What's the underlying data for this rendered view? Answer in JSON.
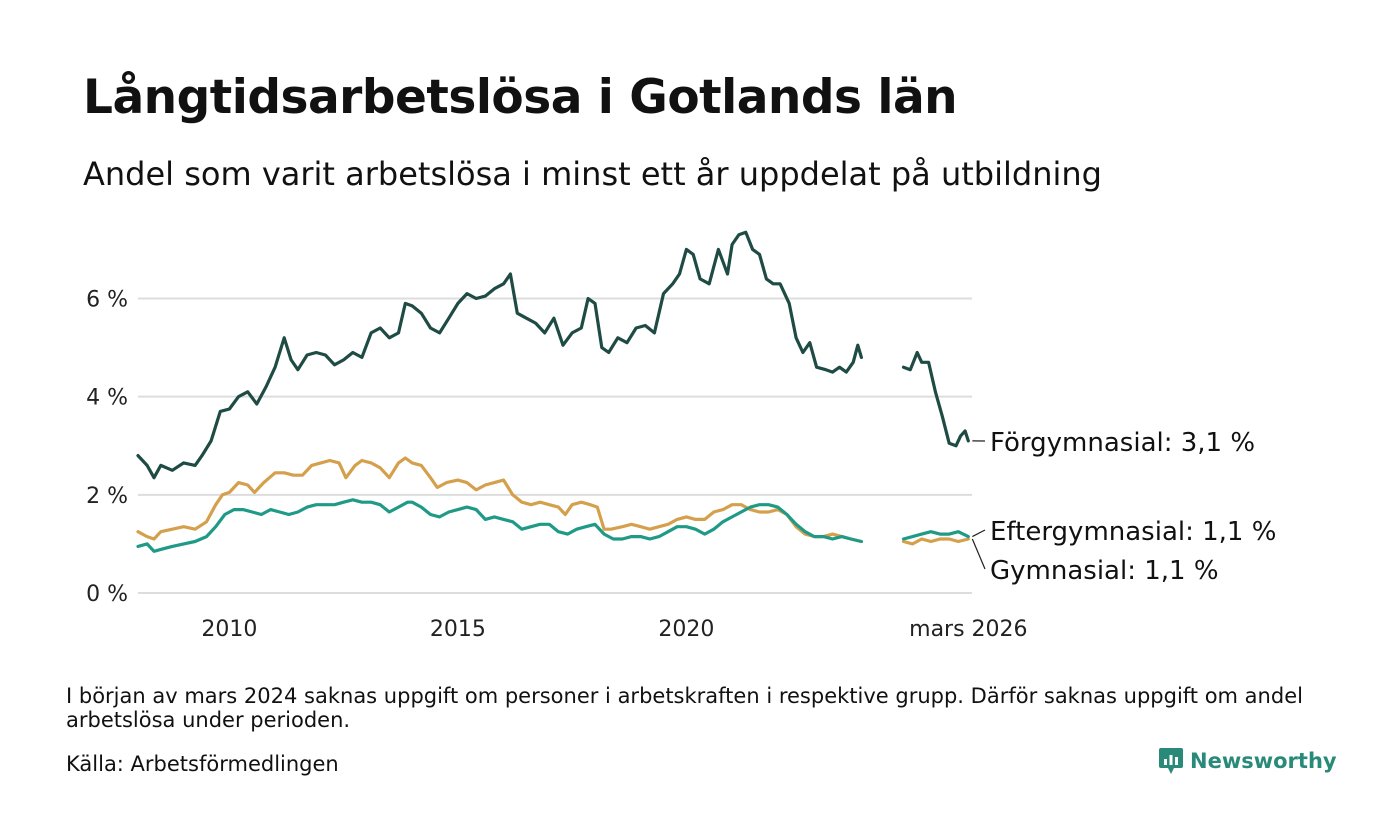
{
  "title": "Långtidsarbetslösa i Gotlands län",
  "subtitle": "Andel som varit arbetslösa i minst ett år uppdelat på utbildning",
  "note": "I början av mars 2024 saknas uppgift om personer i arbetskraften i respektive grupp. Därför saknas uppgift om andel arbetslösa under perioden.",
  "source": "Källa: Arbetsförmedlingen",
  "brand": "Newsworthy",
  "colors": {
    "forgymnasial": "#1f4b45",
    "gymnasial": "#d4a04c",
    "eftergymnasial": "#1f9a86",
    "grid": "#dddddd",
    "brand": "#2a8a7a"
  },
  "chart_data": {
    "type": "line",
    "x_unit": "decimal year",
    "xlim": [
      2008.0,
      2026.25
    ],
    "ylim": [
      0,
      7.6
    ],
    "y_ticks": [
      0,
      2,
      4,
      6
    ],
    "y_tick_labels": [
      "0 %",
      "2 %",
      "4 %",
      "6 %"
    ],
    "x_ticks": [
      2010,
      2015,
      2020,
      2026.17
    ],
    "x_tick_labels": [
      "2010",
      "2015",
      "2020",
      "mars 2026"
    ],
    "gap": [
      2023.83,
      2024.75
    ],
    "series": [
      {
        "name": "Förgymnasial",
        "label": "Förgymnasial: 3,1 %",
        "color": "#1f4b45",
        "points": [
          [
            2008.0,
            2.8
          ],
          [
            2008.2,
            2.6
          ],
          [
            2008.35,
            2.35
          ],
          [
            2008.5,
            2.6
          ],
          [
            2008.75,
            2.5
          ],
          [
            2009.0,
            2.65
          ],
          [
            2009.25,
            2.6
          ],
          [
            2009.4,
            2.8
          ],
          [
            2009.6,
            3.1
          ],
          [
            2009.8,
            3.7
          ],
          [
            2010.0,
            3.75
          ],
          [
            2010.2,
            4.0
          ],
          [
            2010.4,
            4.1
          ],
          [
            2010.6,
            3.85
          ],
          [
            2010.8,
            4.2
          ],
          [
            2011.0,
            4.6
          ],
          [
            2011.2,
            5.2
          ],
          [
            2011.35,
            4.75
          ],
          [
            2011.5,
            4.55
          ],
          [
            2011.7,
            4.85
          ],
          [
            2011.9,
            4.9
          ],
          [
            2012.1,
            4.85
          ],
          [
            2012.3,
            4.65
          ],
          [
            2012.5,
            4.75
          ],
          [
            2012.7,
            4.9
          ],
          [
            2012.9,
            4.8
          ],
          [
            2013.1,
            5.3
          ],
          [
            2013.3,
            5.4
          ],
          [
            2013.5,
            5.2
          ],
          [
            2013.7,
            5.3
          ],
          [
            2013.85,
            5.9
          ],
          [
            2014.0,
            5.85
          ],
          [
            2014.2,
            5.7
          ],
          [
            2014.4,
            5.4
          ],
          [
            2014.6,
            5.3
          ],
          [
            2014.8,
            5.6
          ],
          [
            2015.0,
            5.9
          ],
          [
            2015.2,
            6.1
          ],
          [
            2015.4,
            6.0
          ],
          [
            2015.6,
            6.05
          ],
          [
            2015.8,
            6.2
          ],
          [
            2016.0,
            6.3
          ],
          [
            2016.15,
            6.5
          ],
          [
            2016.3,
            5.7
          ],
          [
            2016.5,
            5.6
          ],
          [
            2016.7,
            5.5
          ],
          [
            2016.9,
            5.3
          ],
          [
            2017.1,
            5.6
          ],
          [
            2017.3,
            5.05
          ],
          [
            2017.5,
            5.3
          ],
          [
            2017.7,
            5.4
          ],
          [
            2017.85,
            6.0
          ],
          [
            2018.0,
            5.9
          ],
          [
            2018.15,
            5.0
          ],
          [
            2018.3,
            4.9
          ],
          [
            2018.5,
            5.2
          ],
          [
            2018.7,
            5.1
          ],
          [
            2018.9,
            5.4
          ],
          [
            2019.1,
            5.45
          ],
          [
            2019.3,
            5.3
          ],
          [
            2019.5,
            6.1
          ],
          [
            2019.7,
            6.3
          ],
          [
            2019.85,
            6.5
          ],
          [
            2020.0,
            7.0
          ],
          [
            2020.15,
            6.9
          ],
          [
            2020.3,
            6.4
          ],
          [
            2020.5,
            6.3
          ],
          [
            2020.7,
            7.0
          ],
          [
            2020.9,
            6.5
          ],
          [
            2021.0,
            7.1
          ],
          [
            2021.15,
            7.3
          ],
          [
            2021.3,
            7.35
          ],
          [
            2021.45,
            7.0
          ],
          [
            2021.6,
            6.9
          ],
          [
            2021.75,
            6.4
          ],
          [
            2021.9,
            6.3
          ],
          [
            2022.05,
            6.3
          ],
          [
            2022.25,
            5.9
          ],
          [
            2022.4,
            5.2
          ],
          [
            2022.55,
            4.9
          ],
          [
            2022.7,
            5.1
          ],
          [
            2022.85,
            4.6
          ],
          [
            2023.05,
            4.55
          ],
          [
            2023.2,
            4.5
          ],
          [
            2023.35,
            4.6
          ],
          [
            2023.5,
            4.5
          ],
          [
            2023.65,
            4.7
          ],
          [
            2023.75,
            5.05
          ],
          [
            2023.83,
            4.8
          ],
          [
            2024.75,
            4.6
          ],
          [
            2024.9,
            4.55
          ],
          [
            2025.05,
            4.9
          ],
          [
            2025.15,
            4.7
          ],
          [
            2025.3,
            4.7
          ],
          [
            2025.45,
            4.1
          ],
          [
            2025.6,
            3.6
          ],
          [
            2025.75,
            3.05
          ],
          [
            2025.9,
            3.0
          ],
          [
            2026.0,
            3.2
          ],
          [
            2026.1,
            3.3
          ],
          [
            2026.17,
            3.1
          ]
        ]
      },
      {
        "name": "Gymnasial",
        "label": "Gymnasial: 1,1 %",
        "color": "#d4a04c",
        "points": [
          [
            2008.0,
            1.25
          ],
          [
            2008.2,
            1.15
          ],
          [
            2008.35,
            1.1
          ],
          [
            2008.5,
            1.25
          ],
          [
            2008.75,
            1.3
          ],
          [
            2009.0,
            1.35
          ],
          [
            2009.25,
            1.3
          ],
          [
            2009.5,
            1.45
          ],
          [
            2009.7,
            1.8
          ],
          [
            2009.85,
            2.0
          ],
          [
            2010.0,
            2.05
          ],
          [
            2010.2,
            2.25
          ],
          [
            2010.4,
            2.2
          ],
          [
            2010.55,
            2.05
          ],
          [
            2010.75,
            2.25
          ],
          [
            2011.0,
            2.45
          ],
          [
            2011.2,
            2.45
          ],
          [
            2011.4,
            2.4
          ],
          [
            2011.6,
            2.4
          ],
          [
            2011.8,
            2.6
          ],
          [
            2012.0,
            2.65
          ],
          [
            2012.2,
            2.7
          ],
          [
            2012.4,
            2.65
          ],
          [
            2012.55,
            2.35
          ],
          [
            2012.75,
            2.6
          ],
          [
            2012.9,
            2.7
          ],
          [
            2013.1,
            2.65
          ],
          [
            2013.3,
            2.55
          ],
          [
            2013.5,
            2.35
          ],
          [
            2013.7,
            2.65
          ],
          [
            2013.85,
            2.75
          ],
          [
            2014.0,
            2.65
          ],
          [
            2014.2,
            2.6
          ],
          [
            2014.4,
            2.35
          ],
          [
            2014.55,
            2.15
          ],
          [
            2014.75,
            2.25
          ],
          [
            2015.0,
            2.3
          ],
          [
            2015.2,
            2.25
          ],
          [
            2015.4,
            2.1
          ],
          [
            2015.6,
            2.2
          ],
          [
            2015.8,
            2.25
          ],
          [
            2016.0,
            2.3
          ],
          [
            2016.2,
            2.0
          ],
          [
            2016.4,
            1.85
          ],
          [
            2016.6,
            1.8
          ],
          [
            2016.8,
            1.85
          ],
          [
            2017.0,
            1.8
          ],
          [
            2017.2,
            1.75
          ],
          [
            2017.35,
            1.6
          ],
          [
            2017.5,
            1.8
          ],
          [
            2017.7,
            1.85
          ],
          [
            2017.9,
            1.8
          ],
          [
            2018.05,
            1.75
          ],
          [
            2018.2,
            1.3
          ],
          [
            2018.35,
            1.3
          ],
          [
            2018.6,
            1.35
          ],
          [
            2018.8,
            1.4
          ],
          [
            2019.0,
            1.35
          ],
          [
            2019.2,
            1.3
          ],
          [
            2019.4,
            1.35
          ],
          [
            2019.6,
            1.4
          ],
          [
            2019.8,
            1.5
          ],
          [
            2020.0,
            1.55
          ],
          [
            2020.2,
            1.5
          ],
          [
            2020.4,
            1.5
          ],
          [
            2020.6,
            1.65
          ],
          [
            2020.8,
            1.7
          ],
          [
            2021.0,
            1.8
          ],
          [
            2021.2,
            1.8
          ],
          [
            2021.4,
            1.7
          ],
          [
            2021.6,
            1.65
          ],
          [
            2021.8,
            1.65
          ],
          [
            2022.0,
            1.7
          ],
          [
            2022.2,
            1.6
          ],
          [
            2022.4,
            1.35
          ],
          [
            2022.6,
            1.2
          ],
          [
            2022.8,
            1.15
          ],
          [
            2023.0,
            1.15
          ],
          [
            2023.2,
            1.2
          ],
          [
            2023.4,
            1.15
          ],
          [
            2023.6,
            1.1
          ],
          [
            2023.83,
            1.05
          ],
          [
            2024.75,
            1.05
          ],
          [
            2024.95,
            1.0
          ],
          [
            2025.15,
            1.1
          ],
          [
            2025.35,
            1.05
          ],
          [
            2025.55,
            1.1
          ],
          [
            2025.75,
            1.1
          ],
          [
            2025.95,
            1.05
          ],
          [
            2026.17,
            1.1
          ]
        ]
      },
      {
        "name": "Eftergymnasial",
        "label": "Eftergymnasial: 1,1 %",
        "color": "#1f9a86",
        "points": [
          [
            2008.0,
            0.95
          ],
          [
            2008.2,
            1.0
          ],
          [
            2008.35,
            0.85
          ],
          [
            2008.55,
            0.9
          ],
          [
            2008.75,
            0.95
          ],
          [
            2009.0,
            1.0
          ],
          [
            2009.25,
            1.05
          ],
          [
            2009.5,
            1.15
          ],
          [
            2009.7,
            1.35
          ],
          [
            2009.9,
            1.6
          ],
          [
            2010.1,
            1.7
          ],
          [
            2010.3,
            1.7
          ],
          [
            2010.5,
            1.65
          ],
          [
            2010.7,
            1.6
          ],
          [
            2010.9,
            1.7
          ],
          [
            2011.1,
            1.65
          ],
          [
            2011.3,
            1.6
          ],
          [
            2011.5,
            1.65
          ],
          [
            2011.7,
            1.75
          ],
          [
            2011.9,
            1.8
          ],
          [
            2012.1,
            1.8
          ],
          [
            2012.3,
            1.8
          ],
          [
            2012.5,
            1.85
          ],
          [
            2012.7,
            1.9
          ],
          [
            2012.9,
            1.85
          ],
          [
            2013.1,
            1.85
          ],
          [
            2013.3,
            1.8
          ],
          [
            2013.5,
            1.65
          ],
          [
            2013.7,
            1.75
          ],
          [
            2013.9,
            1.85
          ],
          [
            2014.0,
            1.85
          ],
          [
            2014.2,
            1.75
          ],
          [
            2014.4,
            1.6
          ],
          [
            2014.6,
            1.55
          ],
          [
            2014.8,
            1.65
          ],
          [
            2015.0,
            1.7
          ],
          [
            2015.2,
            1.75
          ],
          [
            2015.4,
            1.7
          ],
          [
            2015.6,
            1.5
          ],
          [
            2015.8,
            1.55
          ],
          [
            2016.0,
            1.5
          ],
          [
            2016.2,
            1.45
          ],
          [
            2016.4,
            1.3
          ],
          [
            2016.6,
            1.35
          ],
          [
            2016.8,
            1.4
          ],
          [
            2017.0,
            1.4
          ],
          [
            2017.2,
            1.25
          ],
          [
            2017.4,
            1.2
          ],
          [
            2017.6,
            1.3
          ],
          [
            2017.8,
            1.35
          ],
          [
            2018.0,
            1.4
          ],
          [
            2018.2,
            1.2
          ],
          [
            2018.4,
            1.1
          ],
          [
            2018.6,
            1.1
          ],
          [
            2018.8,
            1.15
          ],
          [
            2019.0,
            1.15
          ],
          [
            2019.2,
            1.1
          ],
          [
            2019.4,
            1.15
          ],
          [
            2019.6,
            1.25
          ],
          [
            2019.8,
            1.35
          ],
          [
            2020.0,
            1.35
          ],
          [
            2020.2,
            1.3
          ],
          [
            2020.4,
            1.2
          ],
          [
            2020.6,
            1.3
          ],
          [
            2020.8,
            1.45
          ],
          [
            2021.0,
            1.55
          ],
          [
            2021.2,
            1.65
          ],
          [
            2021.4,
            1.75
          ],
          [
            2021.6,
            1.8
          ],
          [
            2021.8,
            1.8
          ],
          [
            2022.0,
            1.75
          ],
          [
            2022.2,
            1.6
          ],
          [
            2022.4,
            1.4
          ],
          [
            2022.6,
            1.25
          ],
          [
            2022.8,
            1.15
          ],
          [
            2023.0,
            1.15
          ],
          [
            2023.2,
            1.1
          ],
          [
            2023.4,
            1.15
          ],
          [
            2023.6,
            1.1
          ],
          [
            2023.83,
            1.05
          ],
          [
            2024.75,
            1.1
          ],
          [
            2024.95,
            1.15
          ],
          [
            2025.15,
            1.2
          ],
          [
            2025.35,
            1.25
          ],
          [
            2025.55,
            1.2
          ],
          [
            2025.75,
            1.2
          ],
          [
            2025.95,
            1.25
          ],
          [
            2026.17,
            1.15
          ]
        ]
      }
    ],
    "labels_order": [
      "Förgymnasial",
      "Eftergymnasial",
      "Gymnasial"
    ]
  }
}
